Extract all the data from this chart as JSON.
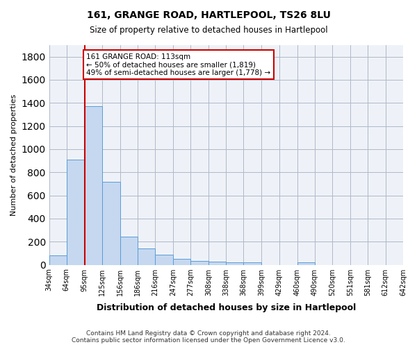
{
  "title": "161, GRANGE ROAD, HARTLEPOOL, TS26 8LU",
  "subtitle": "Size of property relative to detached houses in Hartlepool",
  "xlabel": "Distribution of detached houses by size in Hartlepool",
  "ylabel": "Number of detached properties",
  "bar_color": "#c5d8f0",
  "bar_edge_color": "#5b9bd5",
  "grid_color": "#b0b8c8",
  "bg_color": "#eef2f8",
  "annotation_text": "161 GRANGE ROAD: 113sqm\n← 50% of detached houses are smaller (1,819)\n49% of semi-detached houses are larger (1,778) →",
  "bin_edges": [
    34,
    64,
    95,
    125,
    156,
    186,
    216,
    247,
    277,
    308,
    338,
    368,
    399,
    429,
    460,
    490,
    520,
    551,
    581,
    612,
    642
  ],
  "bin_labels": [
    "34sqm",
    "64sqm",
    "95sqm",
    "125sqm",
    "156sqm",
    "186sqm",
    "216sqm",
    "247sqm",
    "277sqm",
    "308sqm",
    "338sqm",
    "368sqm",
    "399sqm",
    "429sqm",
    "460sqm",
    "490sqm",
    "520sqm",
    "551sqm",
    "581sqm",
    "612sqm",
    "642sqm"
  ],
  "bar_heights": [
    80,
    910,
    1370,
    715,
    245,
    140,
    85,
    50,
    35,
    30,
    20,
    20,
    0,
    0,
    20,
    0,
    0,
    0,
    0,
    0
  ],
  "ylim": [
    0,
    1900
  ],
  "yticks": [
    0,
    200,
    400,
    600,
    800,
    1000,
    1200,
    1400,
    1600,
    1800
  ],
  "footer": "Contains HM Land Registry data © Crown copyright and database right 2024.\nContains public sector information licensed under the Open Government Licence v3.0.",
  "annotation_box_color": "#ffffff",
  "annotation_box_edge_color": "#cc0000",
  "vline_color": "#cc0000",
  "vline_bin_index": 2
}
